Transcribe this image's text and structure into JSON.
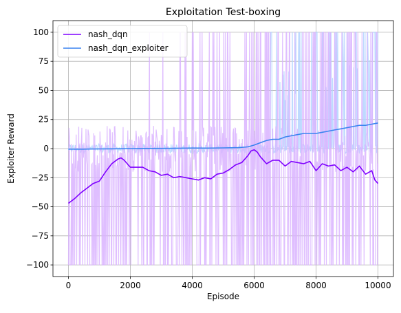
{
  "chart_data": {
    "type": "line",
    "title": "Exploitation Test-boxing",
    "xlabel": "Episode",
    "ylabel": "Exploiter Reward",
    "xlim": [
      -500,
      10500
    ],
    "ylim": [
      -110,
      110
    ],
    "xticks": [
      0,
      2000,
      4000,
      6000,
      8000,
      10000
    ],
    "xtick_labels": [
      "0",
      "2000",
      "4000",
      "6000",
      "8000",
      "10000"
    ],
    "yticks": [
      -100,
      -75,
      -50,
      -25,
      0,
      25,
      50,
      75,
      100
    ],
    "ytick_labels": [
      "−100",
      "−75",
      "−50",
      "−25",
      "0",
      "25",
      "50",
      "75",
      "100"
    ],
    "grid": true,
    "legend_position": "top-left",
    "series": [
      {
        "name": "nash_dqn",
        "color": "#7f00ff",
        "raw_color": "#d9b3ff",
        "x": [
          0,
          200,
          400,
          600,
          800,
          1000,
          1200,
          1400,
          1600,
          1700,
          1800,
          2000,
          2200,
          2400,
          2600,
          2800,
          3000,
          3200,
          3400,
          3600,
          3800,
          4000,
          4200,
          4400,
          4600,
          4800,
          5000,
          5200,
          5400,
          5600,
          5800,
          5900,
          6000,
          6100,
          6200,
          6400,
          6600,
          6800,
          7000,
          7200,
          7400,
          7600,
          7800,
          8000,
          8200,
          8400,
          8600,
          8800,
          9000,
          9200,
          9400,
          9600,
          9800,
          9900,
          10000
        ],
        "values": [
          -47,
          -43,
          -38,
          -34,
          -30,
          -28,
          -20,
          -13,
          -9,
          -8,
          -10,
          -16,
          -16,
          -16,
          -19,
          -20,
          -23,
          -22,
          -25,
          -24,
          -25,
          -26,
          -27,
          -25,
          -26,
          -22,
          -21,
          -18,
          -14,
          -12,
          -6,
          -2,
          -1,
          -3,
          -7,
          -13,
          -10,
          -10,
          -15,
          -11,
          -12,
          -13,
          -11,
          -19,
          -13,
          -15,
          -14,
          -19,
          -16,
          -20,
          -15,
          -22,
          -19,
          -27,
          -30
        ]
      },
      {
        "name": "nash_dqn_exploiter",
        "color": "#3a84f0",
        "raw_color": "#b3d4ff",
        "x": [
          0,
          500,
          1000,
          1500,
          2000,
          2500,
          3000,
          3500,
          4000,
          4500,
          5000,
          5500,
          5800,
          6000,
          6200,
          6400,
          6600,
          6800,
          7000,
          7200,
          7400,
          7600,
          7800,
          8000,
          8200,
          8400,
          8600,
          8800,
          9000,
          9200,
          9400,
          9600,
          9800,
          10000
        ],
        "values": [
          -0.5,
          -0.5,
          -0.3,
          -0.2,
          0,
          0.1,
          0.2,
          0.3,
          0.5,
          0.4,
          0.6,
          0.8,
          1.5,
          3,
          5,
          7,
          8,
          8,
          10,
          11,
          12,
          13,
          13,
          13,
          14,
          15,
          16,
          17,
          18,
          19,
          20,
          20,
          21,
          22
        ]
      }
    ]
  }
}
